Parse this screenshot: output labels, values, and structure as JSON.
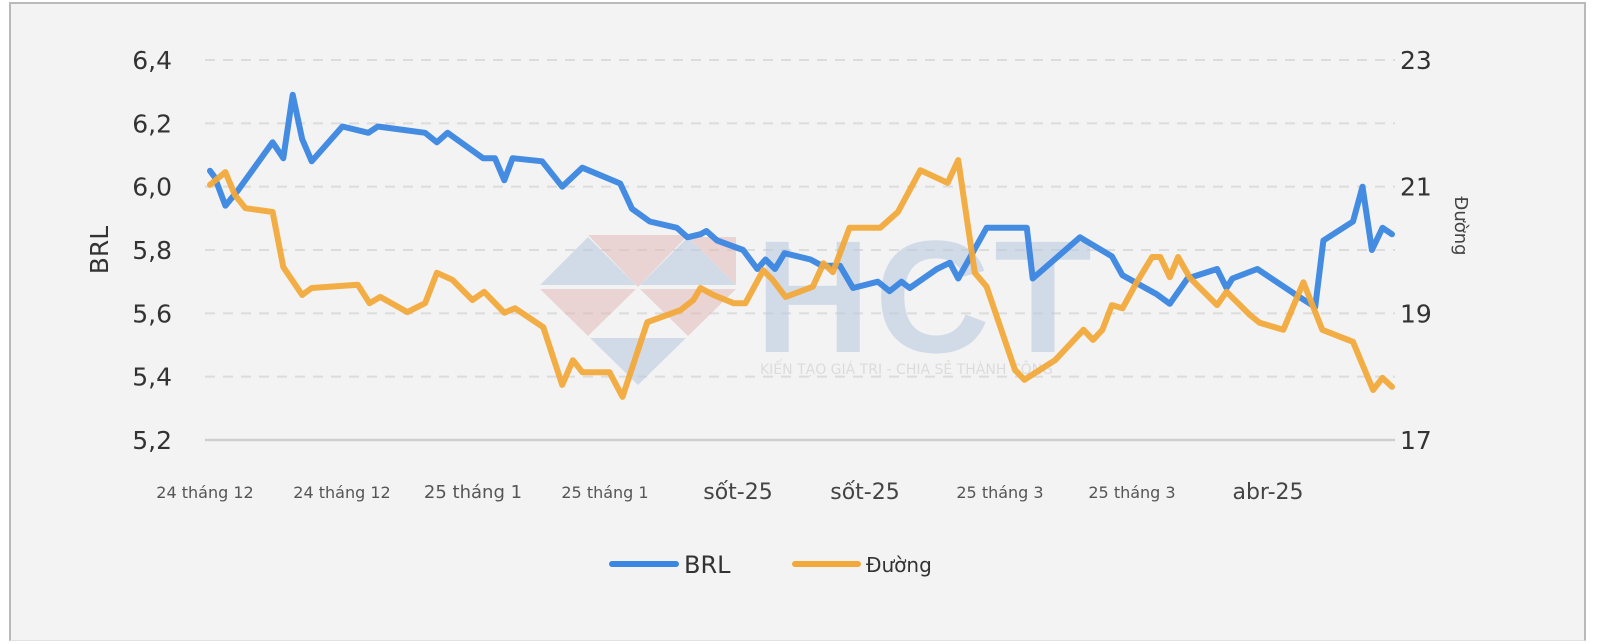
{
  "chart_data": {
    "type": "line",
    "title": "",
    "xlabel": "",
    "ylabel": "BRL",
    "ylabel_right": "Đường",
    "ylim": [
      5.2,
      6.4
    ],
    "ylim_right": [
      17,
      23
    ],
    "yticks": [
      "6,4",
      "6,2",
      "6,0",
      "5,8",
      "5,6",
      "5,4",
      "5,2"
    ],
    "yticks_values": [
      6.4,
      6.2,
      6.0,
      5.8,
      5.6,
      5.4,
      5.2
    ],
    "yticks_right": [
      "23",
      "21",
      "19",
      "17"
    ],
    "yticks_right_values": [
      23,
      21,
      19,
      17
    ],
    "categories": [
      "24 tháng 12",
      "24 tháng 12",
      "25 tháng 1",
      "25 tháng 1",
      "sốt-25",
      "sốt-25",
      "25 tháng 3",
      "25 tháng 3",
      "abr-25"
    ],
    "category_positions": [
      0.0,
      0.111,
      0.222,
      0.333,
      0.444,
      0.555,
      0.667,
      0.778,
      0.889
    ],
    "grid": true,
    "legend_position": "bottom",
    "series": [
      {
        "name": "BRL",
        "axis": "left",
        "color": "#3a86e0",
        "x": [
          0.0,
          0.004,
          0.013,
          0.024,
          0.053,
          0.062,
          0.07,
          0.078,
          0.086,
          0.112,
          0.134,
          0.142,
          0.182,
          0.192,
          0.201,
          0.231,
          0.241,
          0.249,
          0.256,
          0.281,
          0.298,
          0.315,
          0.347,
          0.357,
          0.372,
          0.395,
          0.404,
          0.415,
          0.42,
          0.429,
          0.451,
          0.463,
          0.47,
          0.478,
          0.486,
          0.508,
          0.518,
          0.533,
          0.544,
          0.565,
          0.575,
          0.585,
          0.592,
          0.615,
          0.626,
          0.633,
          0.657,
          0.691,
          0.696,
          0.736,
          0.745,
          0.763,
          0.772,
          0.801,
          0.812,
          0.827,
          0.852,
          0.86,
          0.865,
          0.886,
          0.918,
          0.935,
          0.942,
          0.967,
          0.975,
          0.983,
          0.992,
          1.0
        ],
        "values": [
          6.05,
          6.03,
          5.94,
          5.99,
          6.14,
          6.09,
          6.29,
          6.15,
          6.08,
          6.19,
          6.17,
          6.19,
          6.17,
          6.14,
          6.17,
          6.09,
          6.09,
          6.02,
          6.09,
          6.08,
          6.0,
          6.06,
          6.01,
          5.93,
          5.89,
          5.87,
          5.84,
          5.85,
          5.86,
          5.83,
          5.8,
          5.74,
          5.77,
          5.74,
          5.79,
          5.77,
          5.75,
          5.75,
          5.68,
          5.7,
          5.67,
          5.7,
          5.68,
          5.74,
          5.76,
          5.71,
          5.87,
          5.87,
          5.71,
          5.84,
          5.82,
          5.78,
          5.72,
          5.66,
          5.63,
          5.71,
          5.74,
          5.68,
          5.71,
          5.74,
          5.66,
          5.62,
          5.83,
          5.89,
          6.0,
          5.8,
          5.87,
          5.85
        ]
      },
      {
        "name": "Đường",
        "axis": "right",
        "color": "#f2a93b",
        "x": [
          0.0,
          0.013,
          0.021,
          0.03,
          0.053,
          0.062,
          0.078,
          0.086,
          0.125,
          0.135,
          0.144,
          0.167,
          0.182,
          0.192,
          0.205,
          0.222,
          0.232,
          0.249,
          0.258,
          0.282,
          0.298,
          0.307,
          0.315,
          0.338,
          0.349,
          0.37,
          0.398,
          0.409,
          0.415,
          0.426,
          0.443,
          0.453,
          0.468,
          0.476,
          0.487,
          0.51,
          0.519,
          0.527,
          0.541,
          0.567,
          0.582,
          0.601,
          0.624,
          0.633,
          0.647,
          0.657,
          0.681,
          0.689,
          0.699,
          0.715,
          0.739,
          0.747,
          0.755,
          0.763,
          0.772,
          0.784,
          0.797,
          0.804,
          0.812,
          0.819,
          0.829,
          0.852,
          0.86,
          0.88,
          0.888,
          0.908,
          0.925,
          0.941,
          0.967,
          0.984,
          0.992,
          1.0
        ],
        "values": [
          21.03,
          21.23,
          20.87,
          20.66,
          20.6,
          19.73,
          19.29,
          19.4,
          19.45,
          19.16,
          19.26,
          19.02,
          19.16,
          19.64,
          19.53,
          19.21,
          19.34,
          19.01,
          19.08,
          18.78,
          17.87,
          18.26,
          18.07,
          18.07,
          17.68,
          18.86,
          19.05,
          19.21,
          19.4,
          19.29,
          19.16,
          19.16,
          19.68,
          19.53,
          19.26,
          19.42,
          19.79,
          19.65,
          20.35,
          20.35,
          20.6,
          21.26,
          21.06,
          21.42,
          19.64,
          19.42,
          18.11,
          17.95,
          18.07,
          18.26,
          18.74,
          18.58,
          18.74,
          19.13,
          19.08,
          19.49,
          19.89,
          19.89,
          19.57,
          19.89,
          19.56,
          19.13,
          19.34,
          18.97,
          18.85,
          18.74,
          19.49,
          18.74,
          18.55,
          17.79,
          17.98,
          17.84
        ]
      }
    ]
  },
  "legend": {
    "items": [
      {
        "label": "BRL",
        "color": "#3a86e0"
      },
      {
        "label": "Đường",
        "color": "#f2a93b"
      }
    ]
  },
  "watermark": {
    "logo_text": "HCT",
    "tagline": "KIẾN TẠO GIÁ TRỊ - CHIA SẺ THÀNH CÔNG"
  }
}
